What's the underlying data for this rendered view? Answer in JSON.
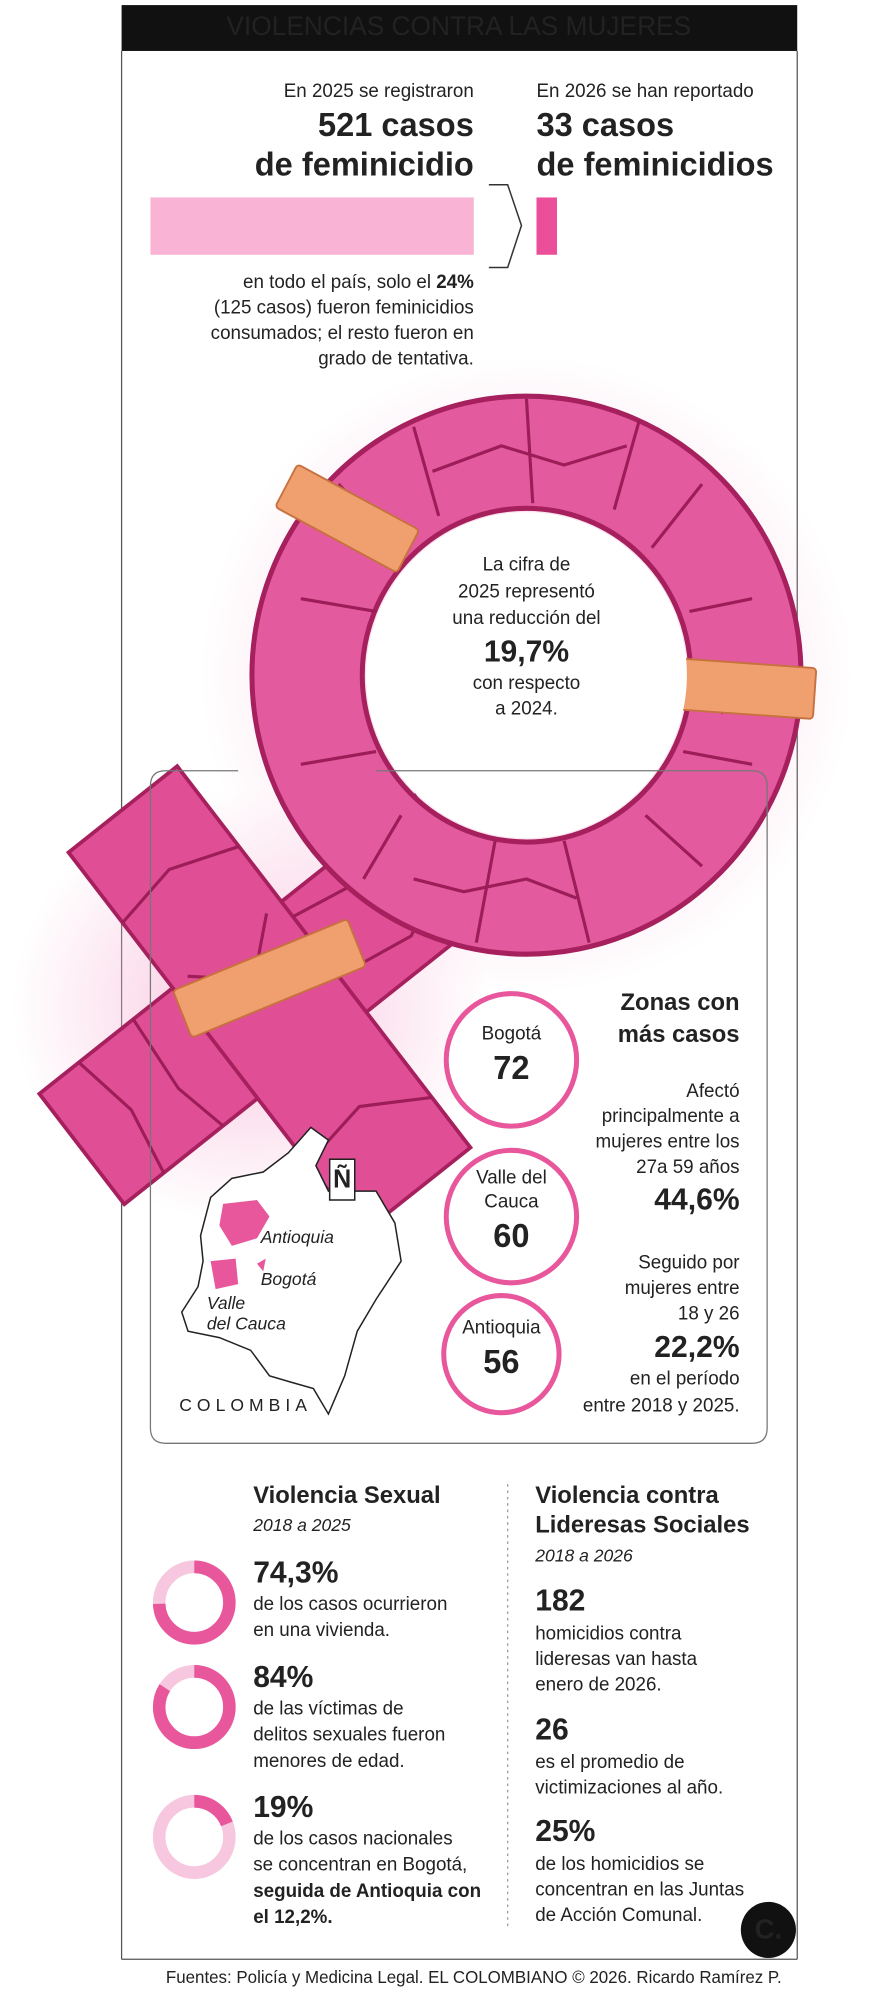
{
  "header": {
    "title": "VIOLENCIAS CONTRA LAS MUJERES"
  },
  "summary": {
    "left": {
      "intro": "En 2025 se registraron",
      "count": {
        "value": 521,
        "label": "521 casos"
      },
      "line2": "de feminicidio"
    },
    "right": {
      "intro": "En 2026 se han reportado",
      "count": {
        "value": 33,
        "label": "33 casos"
      },
      "line2": "de feminicidios"
    }
  },
  "note": {
    "first": "en todo el país, solo el ",
    "first_bold": "24%",
    "lines": [
      "(125 casos) fueron feminicidios",
      "consumados; el resto fueron en",
      "grado de tentativa."
    ]
  },
  "ring_text": {
    "lines": [
      "La cifra de",
      "2025 representó",
      "una reducción del"
    ],
    "highlight": "19,7%",
    "lines_after": [
      "con respecto",
      "a 2024."
    ]
  },
  "zones": {
    "title_lines": [
      "Zonas con",
      "más casos"
    ],
    "items": [
      {
        "name_lines": [
          "Bogotá"
        ],
        "value": 72
      },
      {
        "name_lines": [
          "Valle del",
          "Cauca"
        ],
        "value": 60
      },
      {
        "name_lines": [
          "Antioquia"
        ],
        "value": 56
      }
    ]
  },
  "ages": {
    "first": {
      "lines": [
        "Afectó",
        "principalmente a",
        "mujeres entre los",
        "27a 59 años"
      ],
      "pct": "44,6%"
    },
    "second": {
      "lines": [
        "Seguido por",
        "mujeres entre",
        "18 y 26"
      ],
      "pct": "22,2%",
      "after": [
        "en el período",
        "entre 2018 y 2025."
      ]
    }
  },
  "map": {
    "antioquia": "Antioquia",
    "bogota": "Bogotá",
    "valle": [
      "Valle",
      "del Cauca"
    ],
    "country": "COLOMBIA",
    "north": "Ñ"
  },
  "sexual": {
    "title": "Violencia Sexual",
    "period": "2018 a 2025",
    "items": [
      {
        "value": 74.3,
        "label": "74,3%",
        "lines": [
          "de los casos ocurrieron",
          "en una vivienda."
        ],
        "bold_lines": []
      },
      {
        "value": 84,
        "label": "84%",
        "lines": [
          "de las víctimas de",
          "delitos sexuales fueron",
          "menores de edad."
        ],
        "bold_lines": []
      },
      {
        "value": 19,
        "label": "19%",
        "lines": [
          "de los casos nacionales",
          "se concentran en Bogotá,"
        ],
        "bold_lines": [
          "seguida de Antioquia con",
          "el 12,2%."
        ]
      }
    ]
  },
  "leaders": {
    "title_lines": [
      "Violencia contra",
      "Lideresas Sociales"
    ],
    "period": "2018 a 2026",
    "items": [
      {
        "figure": "182",
        "lines": [
          "homicidios contra",
          "lideresas van hasta",
          "enero de 2026."
        ]
      },
      {
        "figure": "26",
        "lines": [
          "es el promedio de",
          "victimizaciones al año."
        ]
      },
      {
        "figure": "25%",
        "lines": [
          "de los homicidios se",
          "concentran en las Juntas",
          "de Acción Comunal."
        ]
      }
    ]
  },
  "logo": "C.",
  "footer": "Fuentes: Policía y Medicina Legal. EL COLOMBIANO © 2026. Ricardo Ramírez P."
}
